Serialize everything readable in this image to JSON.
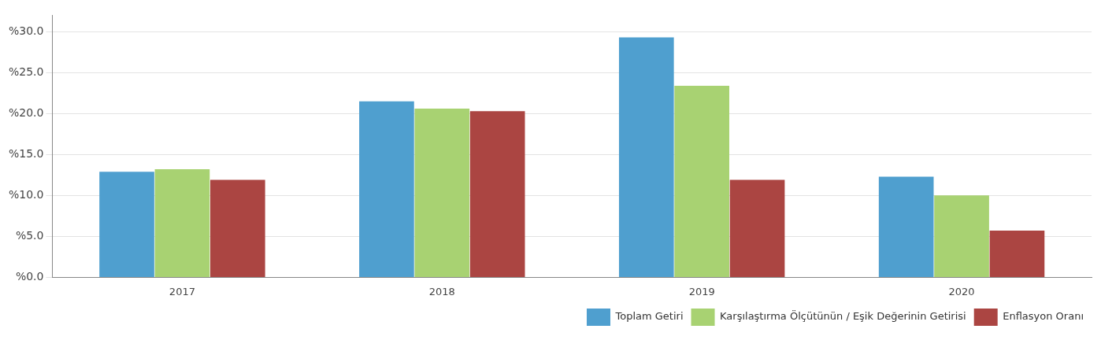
{
  "chart_data": {
    "type": "bar",
    "categories": [
      "2017",
      "2018",
      "2019",
      "2020"
    ],
    "series": [
      {
        "name": "Toplam Getiri",
        "color": "#4f9fcf",
        "values": [
          12.9,
          21.5,
          29.3,
          12.3
        ]
      },
      {
        "name": "Karşılaştırma Ölçütünün / Eşik Değerinin Getirisi",
        "color": "#a8d272",
        "values": [
          13.2,
          20.6,
          23.4,
          10.0
        ]
      },
      {
        "name": "Enflasyon Oranı",
        "color": "#ab4542",
        "values": [
          11.9,
          20.3,
          11.9,
          5.7
        ]
      }
    ],
    "ylim": [
      0,
      32
    ],
    "yticks": [
      {
        "value": 0,
        "label": "%0.0"
      },
      {
        "value": 5,
        "label": "%5.0"
      },
      {
        "value": 10,
        "label": "%10.0"
      },
      {
        "value": 15,
        "label": "%15.0"
      },
      {
        "value": 20,
        "label": "%20.0"
      },
      {
        "value": 25,
        "label": "%25.0"
      },
      {
        "value": 30,
        "label": "%30.0"
      }
    ],
    "grid": "y",
    "legend": "bottom right"
  }
}
